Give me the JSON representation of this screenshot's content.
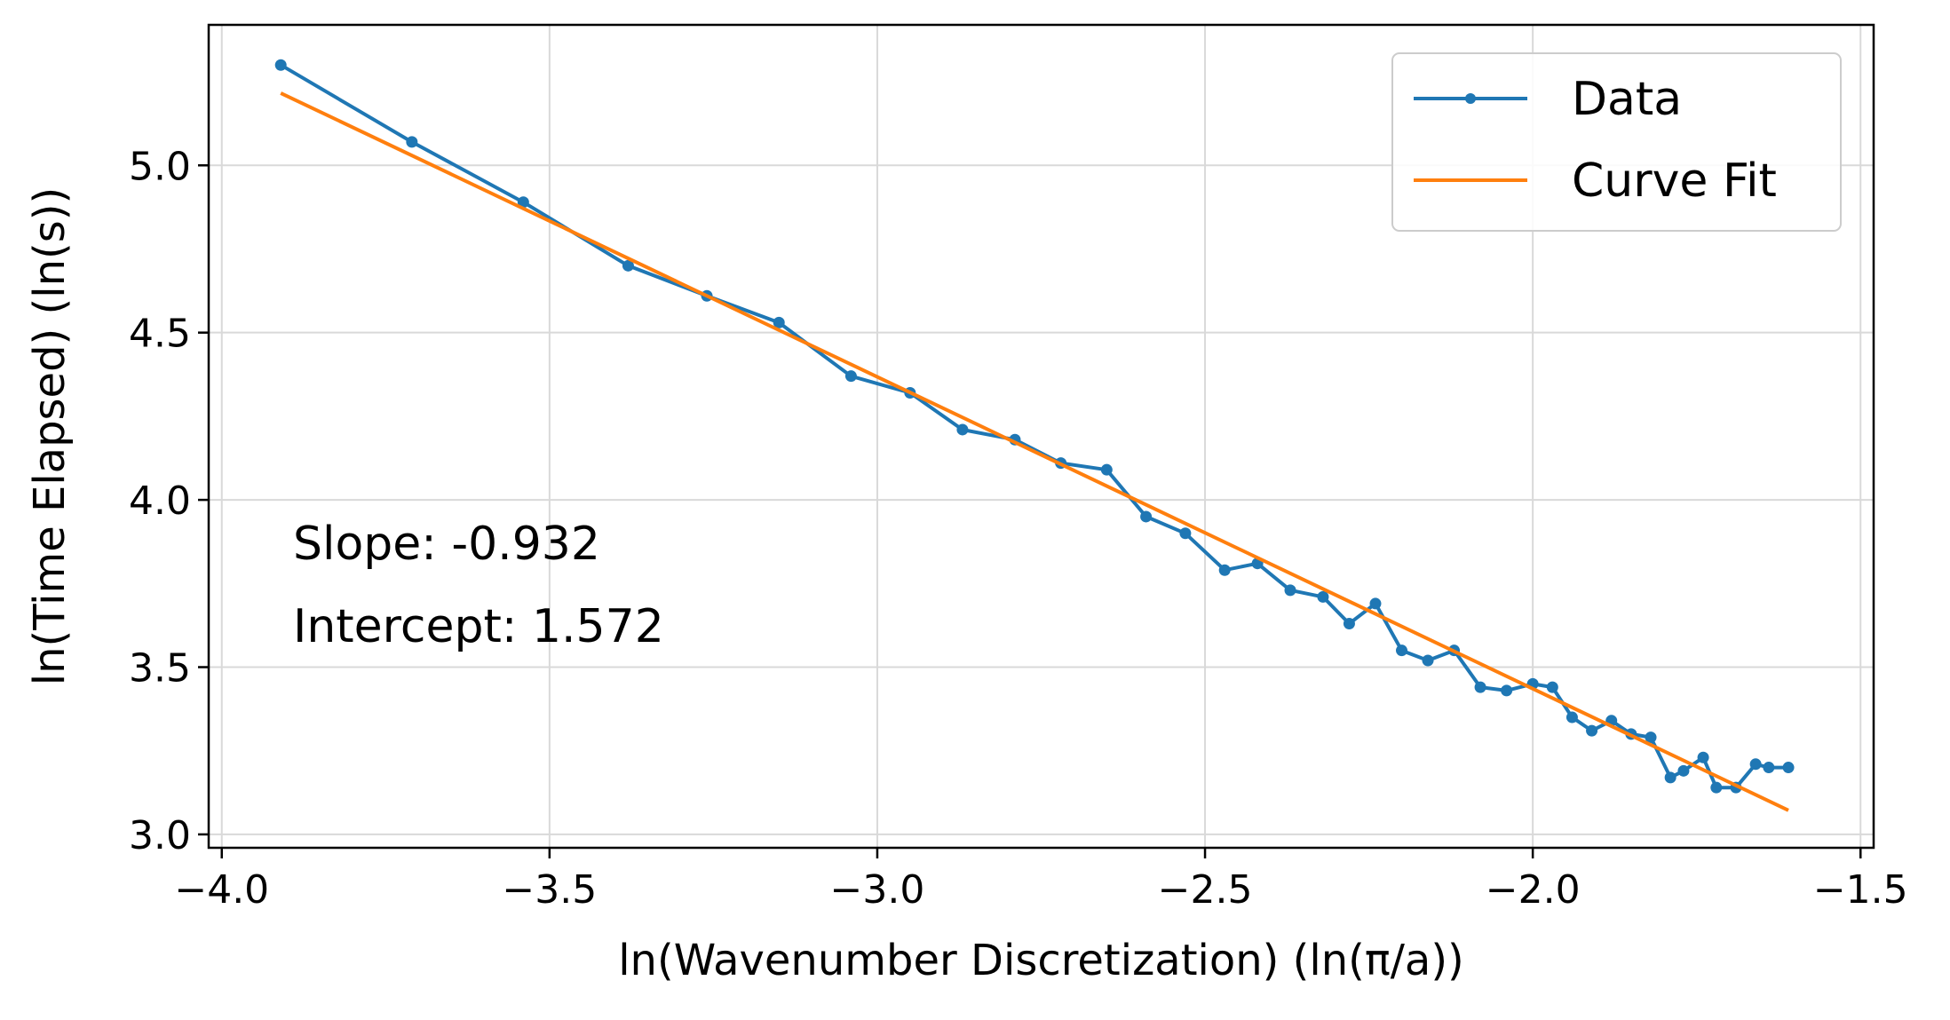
{
  "chart_data": {
    "type": "line",
    "title": "",
    "xlabel": "ln(Wavenumber Discretization) (ln(π/a))",
    "ylabel": "ln(Time Elapsed) (ln(s))",
    "xlim": [
      -4.02,
      -1.48
    ],
    "ylim": [
      2.96,
      5.42
    ],
    "xticks": [
      -4.0,
      -3.5,
      -3.0,
      -2.5,
      -2.0,
      -1.5
    ],
    "xtick_labels": [
      "−4.0",
      "−3.5",
      "−3.0",
      "−2.5",
      "−2.0",
      "−1.5"
    ],
    "yticks": [
      3.0,
      3.5,
      4.0,
      4.5,
      5.0
    ],
    "ytick_labels": [
      "3.0",
      "3.5",
      "4.0",
      "4.5",
      "5.0"
    ],
    "grid": true,
    "legend_position": "upper right",
    "annotations": [
      "Slope: -0.932",
      "Intercept: 1.572"
    ],
    "colors": {
      "data": "#1f77b4",
      "fit": "#ff7f0e"
    },
    "series": [
      {
        "name": "Data",
        "style": "line-with-markers",
        "x": [
          -3.91,
          -3.71,
          -3.54,
          -3.38,
          -3.26,
          -3.15,
          -3.04,
          -2.95,
          -2.87,
          -2.79,
          -2.72,
          -2.65,
          -2.59,
          -2.53,
          -2.47,
          -2.42,
          -2.37,
          -2.32,
          -2.28,
          -2.24,
          -2.2,
          -2.16,
          -2.12,
          -2.08,
          -2.04,
          -2.0,
          -1.97,
          -1.94,
          -1.91,
          -1.88,
          -1.85,
          -1.82,
          -1.79,
          -1.77,
          -1.74,
          -1.72,
          -1.69,
          -1.66,
          -1.64,
          -1.61
        ],
        "y": [
          5.3,
          5.07,
          4.89,
          4.7,
          4.61,
          4.53,
          4.37,
          4.32,
          4.21,
          4.18,
          4.11,
          4.09,
          3.95,
          3.9,
          3.79,
          3.81,
          3.73,
          3.71,
          3.63,
          3.69,
          3.55,
          3.52,
          3.55,
          3.44,
          3.43,
          3.45,
          3.44,
          3.35,
          3.31,
          3.34,
          3.3,
          3.29,
          3.17,
          3.19,
          3.23,
          3.14,
          3.14,
          3.21,
          3.2,
          3.2
        ]
      },
      {
        "name": "Curve Fit",
        "style": "line",
        "x": [
          -3.91,
          -1.61
        ],
        "y": [
          5.216,
          3.072
        ]
      }
    ]
  }
}
